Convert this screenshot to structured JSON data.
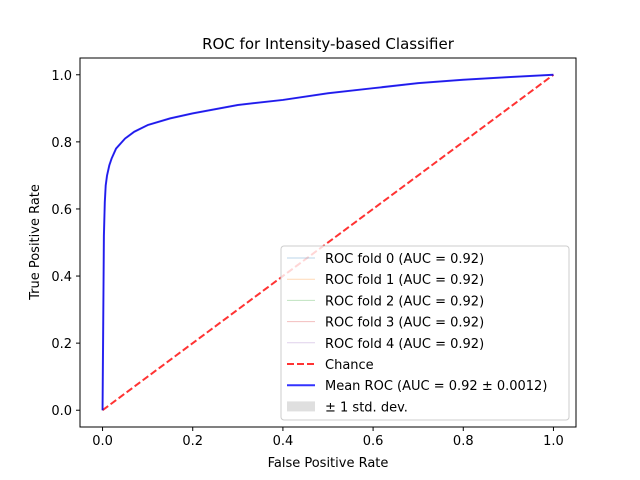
{
  "chart_data": {
    "type": "line",
    "title": "ROC for Intensity-based Classifier",
    "xlabel": "False Positive Rate",
    "ylabel": "True Positive Rate",
    "xlim": [
      -0.05,
      1.05
    ],
    "ylim": [
      -0.05,
      1.05
    ],
    "xticks": [
      "0.0",
      "0.2",
      "0.4",
      "0.6",
      "0.8",
      "1.0"
    ],
    "yticks": [
      "0.0",
      "0.2",
      "0.4",
      "0.6",
      "0.8",
      "1.0"
    ],
    "grid": false,
    "legend_position": "lower-right",
    "x": [
      0,
      0.003,
      0.005,
      0.007,
      0.01,
      0.015,
      0.02,
      0.03,
      0.05,
      0.07,
      0.1,
      0.15,
      0.2,
      0.3,
      0.4,
      0.5,
      0.6,
      0.7,
      0.8,
      0.9,
      1.0
    ],
    "series": [
      {
        "name": "ROC fold 0 (AUC = 0.92)",
        "color": "#1f77b4",
        "values": [
          0,
          0.52,
          0.62,
          0.67,
          0.7,
          0.73,
          0.75,
          0.78,
          0.81,
          0.83,
          0.85,
          0.87,
          0.885,
          0.91,
          0.925,
          0.945,
          0.96,
          0.975,
          0.985,
          0.993,
          1.0
        ]
      },
      {
        "name": "ROC fold 1 (AUC = 0.92)",
        "color": "#ff7f0e",
        "values": [
          0,
          0.52,
          0.62,
          0.67,
          0.7,
          0.73,
          0.75,
          0.78,
          0.81,
          0.83,
          0.85,
          0.87,
          0.885,
          0.91,
          0.925,
          0.945,
          0.96,
          0.975,
          0.985,
          0.993,
          1.0
        ]
      },
      {
        "name": "ROC fold 2 (AUC = 0.92)",
        "color": "#2ca02c",
        "values": [
          0,
          0.52,
          0.62,
          0.67,
          0.7,
          0.73,
          0.75,
          0.78,
          0.81,
          0.83,
          0.85,
          0.87,
          0.885,
          0.91,
          0.925,
          0.945,
          0.96,
          0.975,
          0.985,
          0.993,
          1.0
        ]
      },
      {
        "name": "ROC fold 3 (AUC = 0.92)",
        "color": "#d62728",
        "values": [
          0,
          0.52,
          0.62,
          0.67,
          0.7,
          0.73,
          0.75,
          0.78,
          0.81,
          0.83,
          0.85,
          0.87,
          0.885,
          0.91,
          0.925,
          0.945,
          0.96,
          0.975,
          0.985,
          0.993,
          1.0
        ]
      },
      {
        "name": "ROC fold 4 (AUC = 0.92)",
        "color": "#9467bd",
        "values": [
          0,
          0.52,
          0.62,
          0.67,
          0.7,
          0.73,
          0.75,
          0.78,
          0.81,
          0.83,
          0.85,
          0.87,
          0.885,
          0.91,
          0.925,
          0.945,
          0.96,
          0.975,
          0.985,
          0.993,
          1.0
        ]
      },
      {
        "name": "Chance",
        "color": "#ff0000",
        "style": "dashed",
        "x": [
          0,
          1
        ],
        "values": [
          0,
          1
        ]
      },
      {
        "name": "Mean ROC (AUC = 0.92 ± 0.0012)",
        "color": "#0000ff",
        "values": [
          0,
          0.52,
          0.62,
          0.67,
          0.7,
          0.73,
          0.75,
          0.78,
          0.81,
          0.83,
          0.85,
          0.87,
          0.885,
          0.91,
          0.925,
          0.945,
          0.96,
          0.975,
          0.985,
          0.993,
          1.0
        ]
      },
      {
        "name": "± 1 std. dev.",
        "color": "#808080",
        "type": "band",
        "std": 0.0012
      }
    ]
  }
}
